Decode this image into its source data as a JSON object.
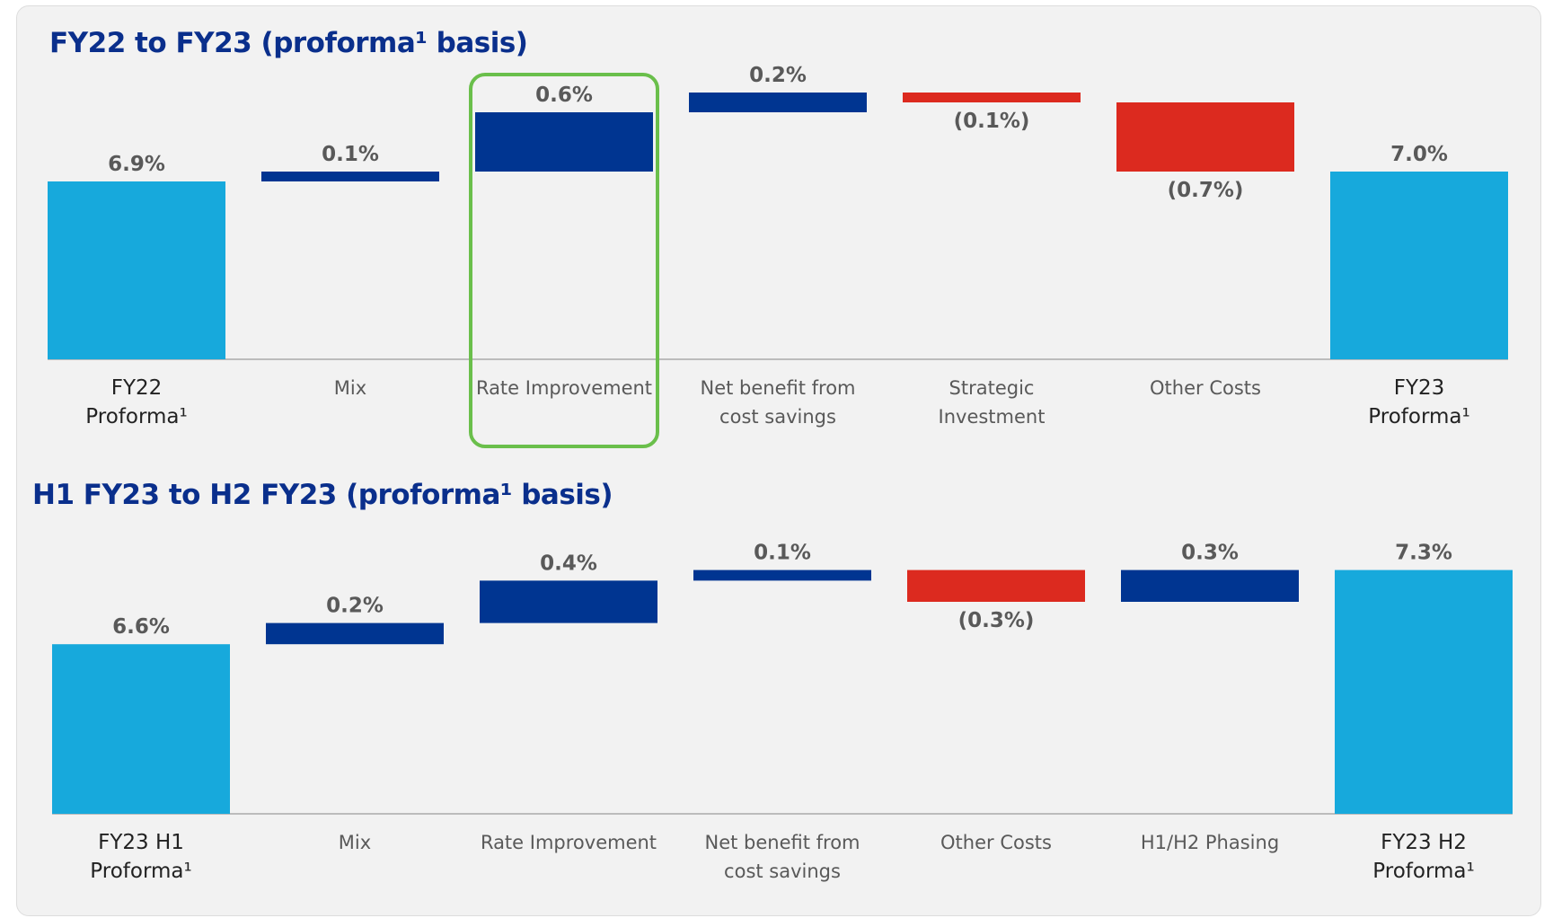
{
  "chart_data": [
    {
      "type": "waterfall",
      "title": "FY22 to FY23 (proforma¹ basis)",
      "categories": [
        "FY22 Proforma¹",
        "Mix",
        "Rate Improvement",
        "Net benefit from cost savings",
        "Strategic Investment",
        "Other Costs",
        "FY23 Proforma¹"
      ],
      "values": [
        6.9,
        0.1,
        0.6,
        0.2,
        -0.1,
        -0.7,
        7.0
      ],
      "value_labels": [
        "6.9%",
        "0.1%",
        "0.6%",
        "0.2%",
        "(0.1%)",
        "(0.7%)",
        "7.0%"
      ],
      "colors": {
        "total": "#17a9dc",
        "increase": "#003591",
        "decrease": "#dc2a1f"
      },
      "ylim": [
        5.1,
        8.0
      ]
    },
    {
      "type": "waterfall",
      "title": "H1 FY23 to H2 FY23 (proforma¹ basis)",
      "categories": [
        "FY23 H1 Proforma¹",
        "Mix",
        "Rate Improvement",
        "Net benefit from cost savings",
        "Other Costs",
        "H1/H2 Phasing",
        "FY23 H2 Proforma¹"
      ],
      "values": [
        6.6,
        0.2,
        0.4,
        0.1,
        -0.3,
        0.3,
        7.3
      ],
      "value_labels": [
        "6.6%",
        "0.2%",
        "0.4%",
        "0.1%",
        "(0.3%)",
        "0.3%",
        "7.3%"
      ],
      "colors": {
        "total": "#17a9dc",
        "increase": "#003591",
        "decrease": "#dc2a1f"
      },
      "ylim": [
        5.0,
        8.0
      ]
    }
  ]
}
